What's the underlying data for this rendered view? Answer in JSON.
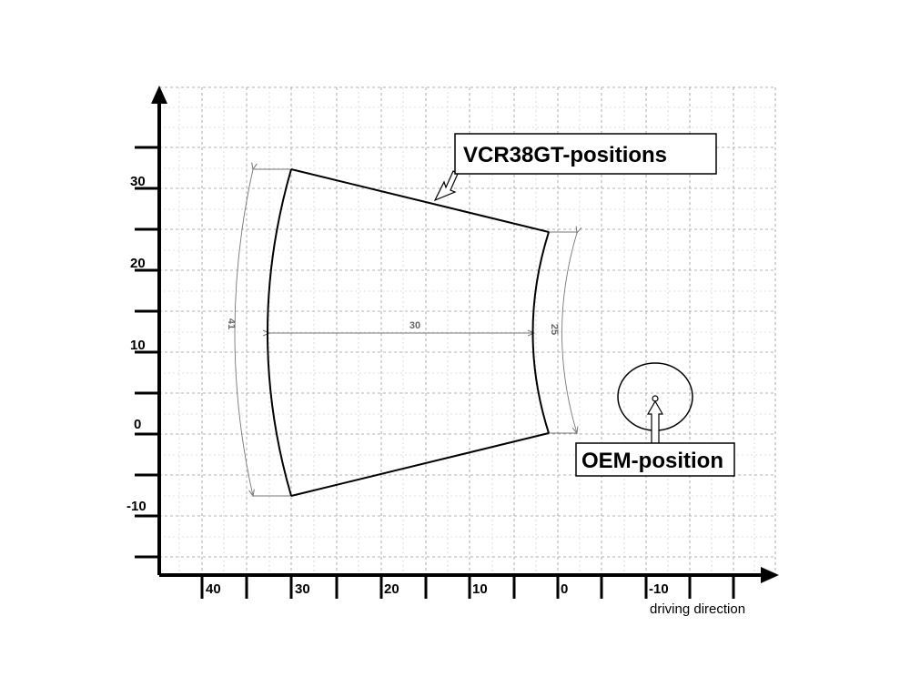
{
  "diagram": {
    "x_ticks": [
      "40",
      "30",
      "20",
      "10",
      "0",
      "-10"
    ],
    "y_ticks": [
      "30",
      "20",
      "10",
      "0",
      "-10"
    ],
    "x_axis_caption": "driving direction",
    "callouts": {
      "vcr": "VCR38GT-positions",
      "oem": "OEM-position"
    },
    "dimensions": {
      "outer_arc": "41",
      "inner_arc": "25",
      "span": "30"
    },
    "colors": {
      "lines": "#000000",
      "grid": "#9a9a9a",
      "dimension": "#777777"
    }
  }
}
